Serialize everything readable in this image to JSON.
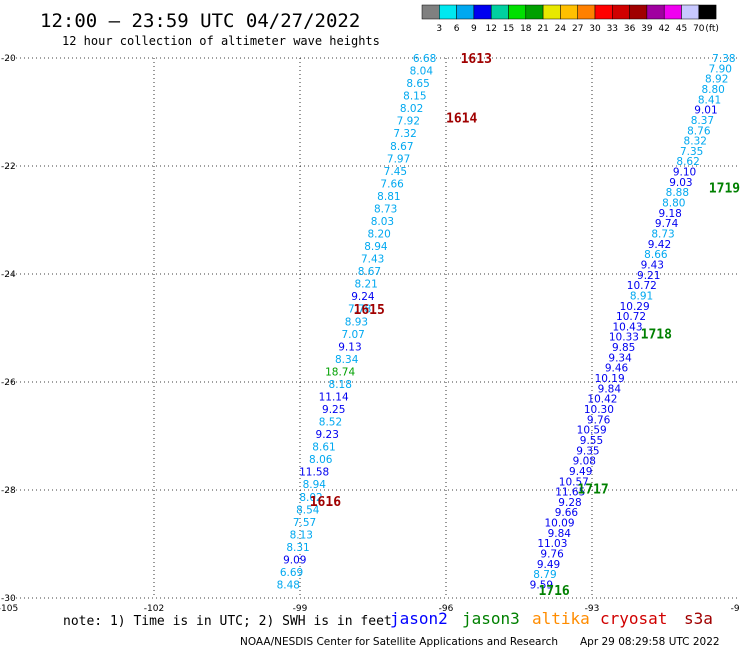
{
  "chart_data": {
    "type": "scatter",
    "title": "12:00 – 23:59 UTC 04/27/2022",
    "subtitle": "12 hour collection of altimeter wave heights",
    "xlim": [
      -105,
      -90
    ],
    "ylim": [
      -30,
      -20
    ],
    "x_ticks": [
      "-105",
      "-102",
      "-99",
      "-96",
      "-93",
      "-90"
    ],
    "y_ticks": [
      "-20",
      "-22",
      "-24",
      "-26",
      "-28",
      "-30"
    ],
    "grid": true,
    "colorbar": {
      "unit": "(ft)",
      "labels": [
        "3",
        "6",
        "9",
        "12",
        "15",
        "18",
        "21",
        "24",
        "27",
        "30",
        "33",
        "36",
        "39",
        "42",
        "45",
        "70"
      ],
      "colors": [
        "#808080",
        "#00e8f0",
        "#00a8f0",
        "#0000f0",
        "#00d0a0",
        "#00e000",
        "#00a000",
        "#e8e800",
        "#ffc000",
        "#ff8000",
        "#ff0000",
        "#d00000",
        "#a00000",
        "#a000a0",
        "#f000f0",
        "#c8c8ff",
        "#000000"
      ]
    },
    "tracks": [
      {
        "x_start": -96.2,
        "x_end": -99.0,
        "y_start": -20.0,
        "y_end": -29.75,
        "values": [
          "6.68",
          "8.04",
          "8.65",
          "8.15",
          "8.02",
          "7.92",
          "7.32",
          "8.67",
          "7.97",
          "7.45",
          "7.66",
          "8.81",
          "8.73",
          "8.03",
          "8.20",
          "8.94",
          "7.43",
          "8.67",
          "8.21",
          "9.24",
          "7.78",
          "8.93",
          "7.07",
          "9.13",
          "8.34",
          "18.74",
          "8.18",
          "11.14",
          "9.25",
          "8.52",
          "9.23",
          "8.61",
          "8.06",
          "11.58",
          "8.94",
          "8.02",
          "8.54",
          "7.57",
          "8.13",
          "8.31",
          "9.09",
          "6.69",
          "8.48"
        ],
        "passes": [
          {
            "label": "1613",
            "x": -95.7,
            "y": -20.0,
            "color": "#a00000"
          },
          {
            "label": "1614",
            "x": -96.0,
            "y": -21.1,
            "color": "#a00000"
          },
          {
            "label": "1615",
            "x": -97.9,
            "y": -24.65,
            "color": "#a00000"
          },
          {
            "label": "1616",
            "x": -98.8,
            "y": -28.2,
            "color": "#a00000"
          }
        ]
      },
      {
        "x_start": -90.05,
        "x_end": -93.8,
        "y_start": -20.0,
        "y_end": -29.75,
        "values": [
          "7.38",
          "7.90",
          "8.92",
          "8.80",
          "8.41",
          "9.01",
          "8.37",
          "8.76",
          "8.32",
          "7.35",
          "8.62",
          "9.10",
          "9.03",
          "8.88",
          "8.80",
          "9.18",
          "9.74",
          "8.73",
          "9.42",
          "8.66",
          "9.43",
          "9.21",
          "10.72",
          "8.91",
          "10.29",
          "10.72",
          "10.43",
          "10.33",
          "9.85",
          "9.34",
          "9.46",
          "10.19",
          "9.84",
          "10.42",
          "10.30",
          "9.76",
          "10.59",
          "9.55",
          "9.35",
          "9.08",
          "9.49",
          "10.57",
          "11.65",
          "9.28",
          "9.66",
          "10.09",
          "9.84",
          "11.03",
          "9.76",
          "9.49",
          "8.79",
          "9.59"
        ],
        "passes": [
          {
            "label": "1719",
            "x": -90.6,
            "y": -22.4,
            "color": "#008000"
          },
          {
            "label": "1718",
            "x": -92.0,
            "y": -25.1,
            "color": "#008000"
          },
          {
            "label": "1717",
            "x": -93.3,
            "y": -27.97,
            "color": "#008000"
          },
          {
            "label": "1716",
            "x": -94.1,
            "y": -29.85,
            "color": "#008000"
          }
        ]
      }
    ]
  },
  "legend_satellites": [
    {
      "name": "jason2",
      "color": "#0000ff"
    },
    {
      "name": "jason3",
      "color": "#008000"
    },
    {
      "name": "altika",
      "color": "#ff8c00"
    },
    {
      "name": "cryosat",
      "color": "#d00000"
    },
    {
      "name": "s3a",
      "color": "#a00000"
    }
  ],
  "note": "note: 1) Time is in UTC; 2) SWH is in feet",
  "credit": "NOAA/NESDIS Center for Satellite Applications and Research",
  "timestamp": "Apr 29 08:29:58 UTC 2022"
}
